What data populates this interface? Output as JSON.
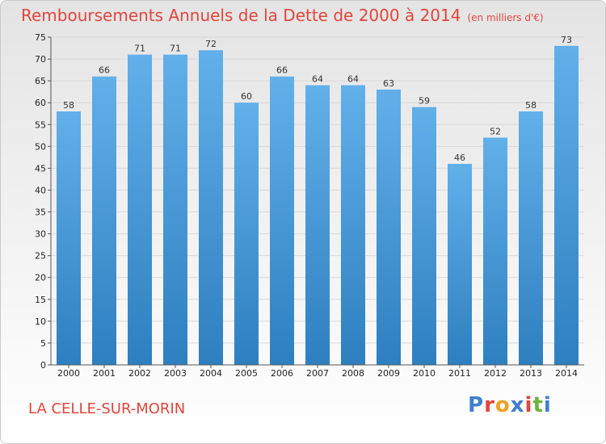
{
  "header": {
    "title": "Remboursements Annuels de la Dette de 2000 à 2014",
    "subtitle": "(en milliers d'€)"
  },
  "footer": {
    "place": "LA CELLE-SUR-MORIN",
    "logo": "Proxiti",
    "logo_colors": [
      "#3f7fd0",
      "#e2453c",
      "#f0a020",
      "#3f7fd0",
      "#e2453c",
      "#6db33f",
      "#3f7fd0"
    ]
  },
  "chart_data": {
    "type": "bar",
    "title": "Remboursements Annuels de la Dette de 2000 à 2014",
    "subtitle": "(en milliers d'€)",
    "categories": [
      "2000",
      "2001",
      "2002",
      "2003",
      "2004",
      "2005",
      "2006",
      "2007",
      "2008",
      "2009",
      "2010",
      "2011",
      "2012",
      "2013",
      "2014"
    ],
    "values": [
      58,
      66,
      71,
      71,
      72,
      60,
      66,
      64,
      64,
      63,
      59,
      46,
      52,
      58,
      73
    ],
    "xlabel": "",
    "ylabel": "",
    "ylim": [
      0,
      75
    ],
    "yticks": [
      0,
      5,
      10,
      15,
      20,
      25,
      30,
      35,
      40,
      45,
      50,
      55,
      60,
      65,
      70,
      75
    ],
    "grid": true,
    "legend": "none",
    "bar_color_top": "#62b0ea",
    "bar_color_bottom": "#2e7fc0",
    "grid_color": "#d8d8d8"
  }
}
